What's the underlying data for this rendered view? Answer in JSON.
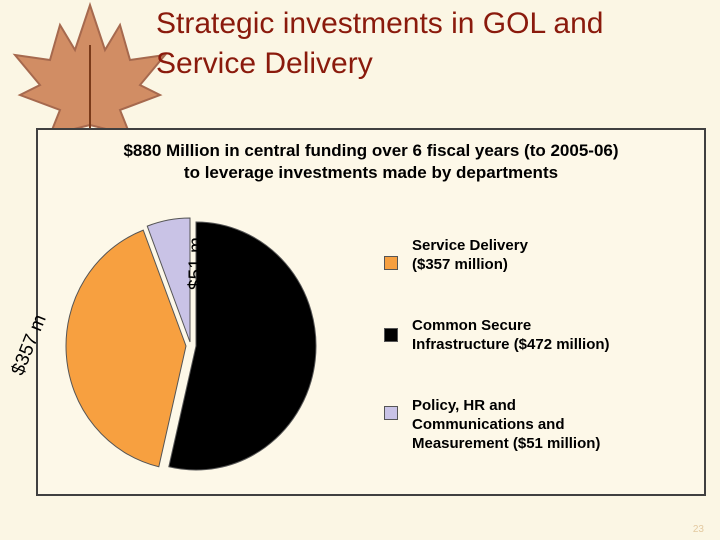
{
  "slide": {
    "title_line1": "Strategic investments in GOL and",
    "title_line2": "Service Delivery",
    "page_number": "23"
  },
  "chart_data": {
    "type": "pie",
    "title_line1": "$880 Million in central funding over 6 fiscal years (to 2005-06)",
    "title_line2": "to leverage investments made by departments",
    "slices": [
      {
        "legend_line1": "Service Delivery",
        "legend_line2": "($357 million)",
        "legend_line3": "",
        "value": 357,
        "label": "$357 m",
        "color": "#f7a040",
        "exploded": true
      },
      {
        "legend_line1": "Common Secure",
        "legend_line2": "Infrastructure ($472 million)",
        "legend_line3": "",
        "value": 472,
        "label": "",
        "color": "#000000",
        "exploded": false
      },
      {
        "legend_line1": "Policy, HR and",
        "legend_line2": "Communications and",
        "legend_line3": "Measurement ($51 million)",
        "value": 51,
        "label": "$51 m",
        "color": "#c9c3e6",
        "exploded": true
      }
    ]
  }
}
